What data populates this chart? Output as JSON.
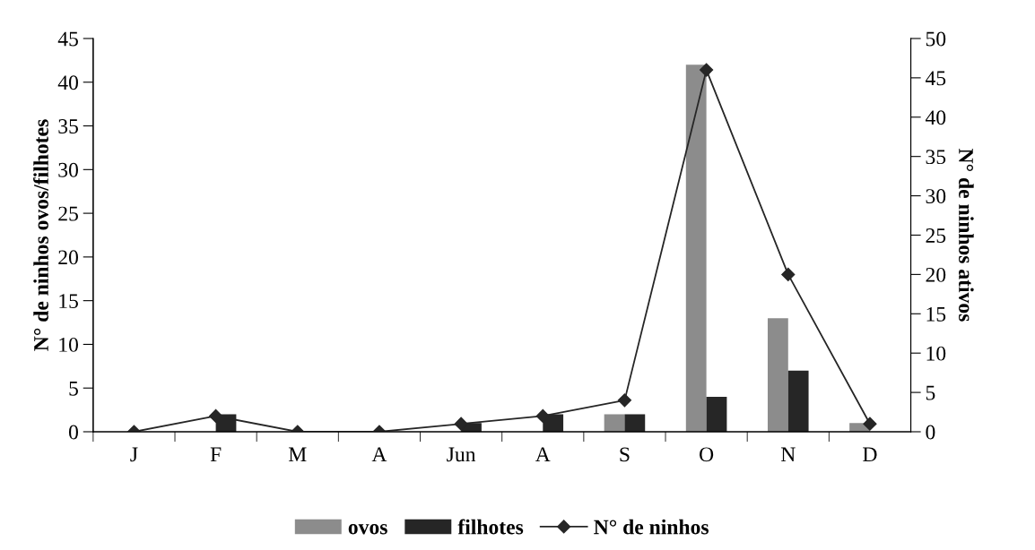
{
  "chart_data": {
    "type": "bar",
    "ylabel": "N° de ninhos ovos/filhotes",
    "y2label": "N° de ninhos ativos",
    "categories": [
      "J",
      "F",
      "M",
      "A",
      "Jun",
      "A",
      "S",
      "O",
      "N",
      "D"
    ],
    "series": [
      {
        "name": "ovos",
        "color": "#8c8c8c",
        "values": [
          0,
          0,
          0,
          0,
          0,
          0,
          2,
          42,
          13,
          1
        ]
      },
      {
        "name": "filhotes",
        "color": "#262626",
        "values": [
          0,
          2,
          0,
          0,
          1,
          2,
          2,
          4,
          7,
          0
        ]
      },
      {
        "name": "N° de ninhos",
        "type": "line",
        "axis": "y2",
        "color": "#262626",
        "marker": "diamond",
        "values": [
          0,
          2,
          0,
          0,
          1,
          2,
          4,
          46,
          20,
          1
        ]
      }
    ],
    "ylim": [
      0,
      45
    ],
    "yticks": [
      0,
      5,
      10,
      15,
      20,
      25,
      30,
      35,
      40,
      45
    ],
    "y2lim": [
      0,
      50
    ],
    "y2ticks": [
      0,
      5,
      10,
      15,
      20,
      25,
      30,
      35,
      40,
      45,
      50
    ],
    "grid": false,
    "legend": "bottom"
  }
}
